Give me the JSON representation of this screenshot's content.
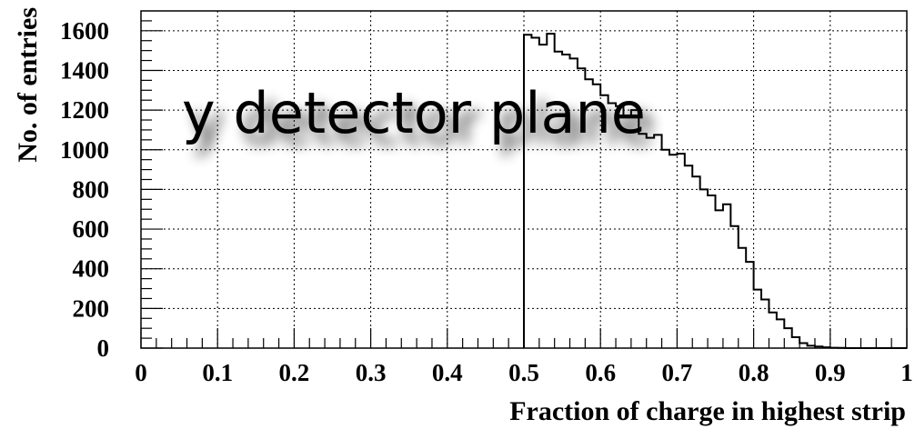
{
  "chart_data": {
    "type": "histogram",
    "title": "",
    "annotation": "y detector plane",
    "xlabel": "Fraction of charge in highest strip",
    "ylabel": "No. of entries",
    "xlim": [
      0,
      1
    ],
    "ylim": [
      0,
      1700
    ],
    "x_ticks": [
      "0",
      "0.1",
      "0.2",
      "0.3",
      "0.4",
      "0.5",
      "0.6",
      "0.7",
      "0.8",
      "0.9",
      "1"
    ],
    "y_ticks": [
      "0",
      "200",
      "400",
      "600",
      "800",
      "1000",
      "1200",
      "1400",
      "1600"
    ],
    "grid": true,
    "bin_width": 0.01,
    "bin_edges_start": 0.5,
    "values": [
      1580,
      1565,
      1530,
      1585,
      1495,
      1480,
      1460,
      1410,
      1355,
      1330,
      1275,
      1235,
      1220,
      1165,
      1200,
      1080,
      1060,
      1075,
      1000,
      975,
      980,
      920,
      865,
      800,
      770,
      695,
      725,
      615,
      505,
      435,
      295,
      245,
      180,
      145,
      100,
      55,
      25,
      12,
      8,
      4,
      2,
      1,
      0,
      0,
      0,
      0,
      0,
      0,
      0,
      0
    ]
  }
}
